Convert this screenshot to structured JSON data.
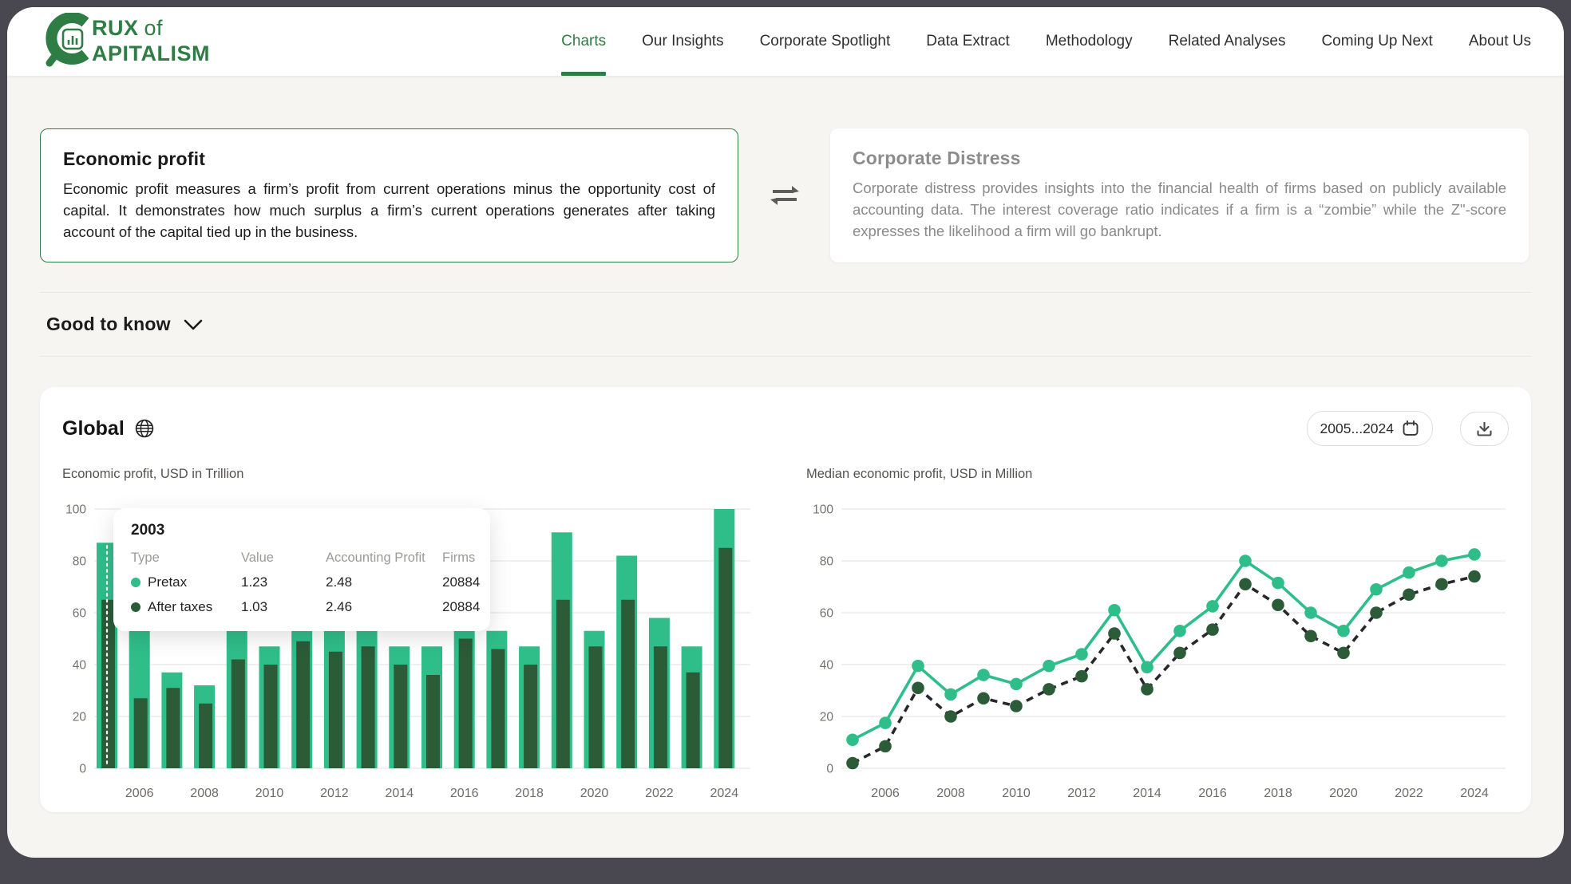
{
  "brand": {
    "line1": "RUX",
    "line1_suffix": "of",
    "line2": "APITALISM"
  },
  "nav": {
    "items": [
      {
        "label": "Charts",
        "active": true
      },
      {
        "label": "Our Insights",
        "active": false
      },
      {
        "label": "Corporate Spotlight",
        "active": false
      },
      {
        "label": "Data Extract",
        "active": false
      },
      {
        "label": "Methodology",
        "active": false
      },
      {
        "label": "Related Analyses",
        "active": false
      },
      {
        "label": "Coming Up Next",
        "active": false
      },
      {
        "label": "About Us",
        "active": false
      }
    ]
  },
  "cards": {
    "left": {
      "title": "Economic profit",
      "body": "Economic profit measures a firm’s profit from current operations minus the opportunity cost of capital. It demonstrates how much surplus a firm’s current operations generates after taking account of the capital tied up in the business."
    },
    "right": {
      "title": "Corporate Distress",
      "body": "Corporate distress provides insights into the financial health of firms based on publicly available accounting data. The interest coverage ratio indicates if a firm is a “zombie” while the Z\"-score expresses the likelihood a firm will go bankrupt."
    }
  },
  "good_to_know": {
    "label": "Good to know"
  },
  "panel": {
    "region_label": "Global",
    "date_range_label": "2005...2024"
  },
  "tooltip": {
    "year": "2003",
    "headers": [
      "Type",
      "Value",
      "Accounting Profit",
      "Firms"
    ],
    "rows": [
      {
        "type": "Pretax",
        "value": "1.23",
        "accounting_profit": "2.48",
        "firms": "20884",
        "dot_color": "#2fbe8a"
      },
      {
        "type": "After taxes",
        "value": "1.03",
        "accounting_profit": "2.46",
        "firms": "20884",
        "dot_color": "#2c5b38"
      }
    ]
  },
  "colors": {
    "accent_green": "#2e7d44",
    "pretax_green": "#2fbe8a",
    "aftertax_green": "#2c5b38",
    "dashed_line": "#26282b",
    "grid": "#e9e8e5",
    "axis_text": "#74726d"
  },
  "chart_data": [
    {
      "type": "bar",
      "title": "Economic profit, USD in Trillion",
      "categories": [
        2005,
        2006,
        2007,
        2008,
        2009,
        2010,
        2011,
        2012,
        2013,
        2014,
        2015,
        2016,
        2017,
        2018,
        2019,
        2020,
        2021,
        2022,
        2023,
        2024
      ],
      "series": [
        {
          "name": "Pretax",
          "values": [
            87,
            53,
            37,
            32,
            53,
            47,
            56,
            53,
            56,
            47,
            47,
            56,
            53,
            47,
            91,
            53,
            82,
            58,
            47,
            100
          ]
        },
        {
          "name": "After taxes",
          "values": [
            65,
            27,
            31,
            25,
            42,
            40,
            49,
            45,
            47,
            40,
            36,
            50,
            46,
            40,
            65,
            47,
            65,
            47,
            37,
            85
          ]
        }
      ],
      "ylim": [
        0,
        100
      ],
      "yticks": [
        0,
        20,
        40,
        60,
        80,
        100
      ],
      "xtick_years": [
        2006,
        2008,
        2010,
        2012,
        2014,
        2016,
        2018,
        2020,
        2022,
        2024
      ],
      "grid": true,
      "hover_index": 0
    },
    {
      "type": "line",
      "title": "Median economic profit, USD in Million",
      "categories": [
        2005,
        2006,
        2007,
        2008,
        2009,
        2010,
        2011,
        2012,
        2013,
        2014,
        2015,
        2016,
        2017,
        2018,
        2019,
        2020,
        2021,
        2022,
        2023,
        2024
      ],
      "series": [
        {
          "name": "Pretax",
          "style": "solid",
          "values": [
            11,
            17.5,
            39.5,
            28.5,
            36,
            32.5,
            39.5,
            44,
            61,
            39,
            53,
            62.5,
            80,
            71.5,
            60,
            53,
            69,
            75.5,
            80,
            82.5
          ]
        },
        {
          "name": "After taxes",
          "style": "dashed",
          "values": [
            2,
            8.5,
            31,
            20,
            27,
            24,
            30.5,
            35.5,
            52,
            30.5,
            44.5,
            53.5,
            71,
            63,
            51,
            44.5,
            60,
            67,
            71,
            74
          ]
        }
      ],
      "ylim": [
        0,
        100
      ],
      "yticks": [
        0,
        20,
        40,
        60,
        80,
        100
      ],
      "xtick_years": [
        2006,
        2008,
        2010,
        2012,
        2014,
        2016,
        2018,
        2020,
        2022,
        2024
      ],
      "grid": true
    }
  ]
}
